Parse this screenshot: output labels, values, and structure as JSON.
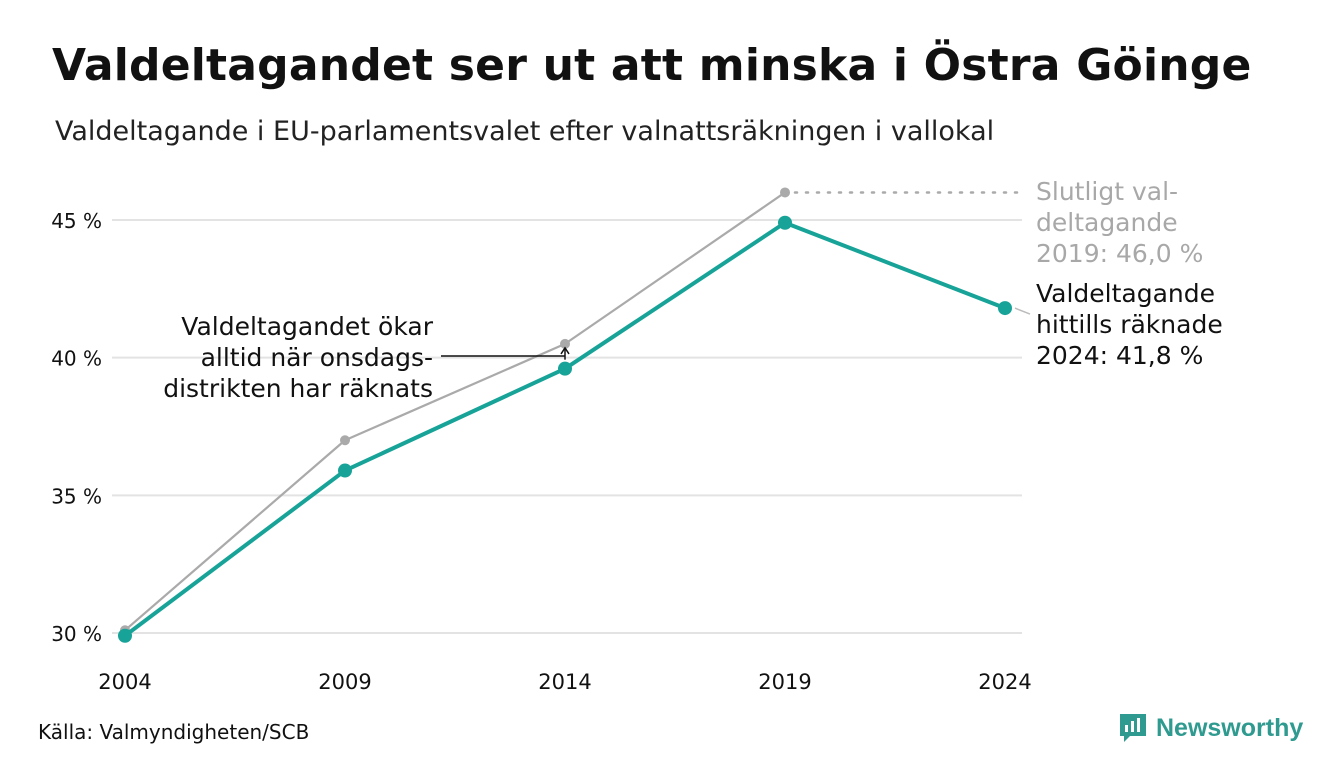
{
  "header": {
    "title": "Valdeltagandet ser ut att minska i Östra Göinge",
    "subtitle": "Valdeltagande i EU-parlamentsvalet efter valnattsräkningen i vallokal"
  },
  "footer": {
    "source": "Källa: Valmyndigheten/SCB",
    "brand": "Newsworthy"
  },
  "colors": {
    "primary": "#17a398",
    "secondary": "#aaaaaa",
    "grid": "#e3e3e3",
    "brand": "#2f9a8f"
  },
  "chart_data": {
    "type": "line",
    "x": [
      2004,
      2009,
      2014,
      2019,
      2024
    ],
    "xticks": [
      "2004",
      "2009",
      "2014",
      "2019",
      "2024"
    ],
    "yticks": [
      "30 %",
      "35 %",
      "40 %",
      "45 %"
    ],
    "ytick_values": [
      30,
      35,
      40,
      45
    ],
    "ylim": [
      30,
      46
    ],
    "grid": true,
    "series": [
      {
        "key": "final",
        "color": "#aaaaaa",
        "values": [
          30.1,
          37.0,
          40.5,
          46.0,
          null
        ]
      },
      {
        "key": "election_night",
        "color": "#17a398",
        "values": [
          29.9,
          35.9,
          39.6,
          44.9,
          41.8
        ]
      }
    ],
    "annotations": {
      "final": [
        "Slutligt val-",
        "deltagande",
        "2019: 46,0 %"
      ],
      "night": [
        "Valdeltagande",
        "hittills räknade",
        "2024: 41,8 %"
      ],
      "wednesday": [
        "Valdeltagandet ökar",
        "alltid när onsdags-",
        "distrikten har räknats"
      ]
    }
  }
}
